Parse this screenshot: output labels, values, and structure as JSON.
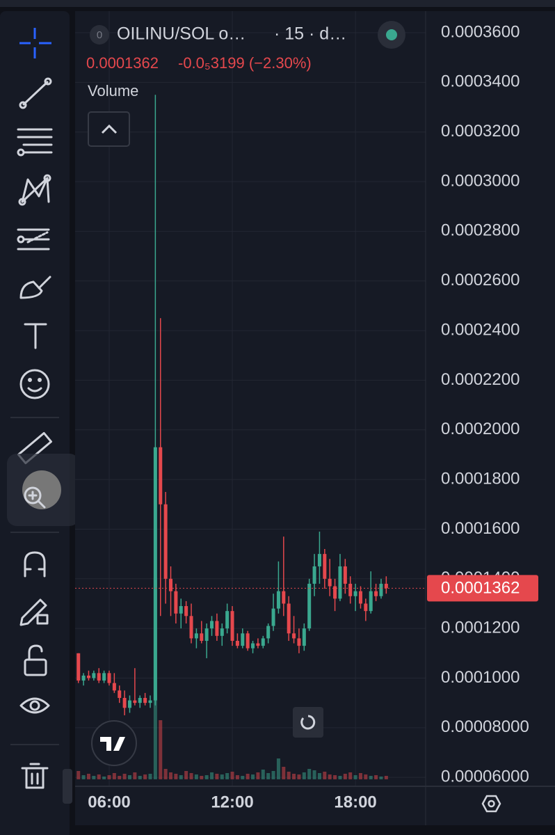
{
  "header": {
    "symbol_badge": "0",
    "symbol": "OILINU/SOL o…",
    "interval": "· 15 · d…",
    "price": "0.0001362",
    "change": "-0.0₅3199 (−2.30%)",
    "volume_label": "Volume"
  },
  "chart_data": {
    "type": "candlestick",
    "up_color": "#3aa88f",
    "down_color": "#e5484d",
    "grid": true,
    "xlim": [
      4.34,
      21.42
    ],
    "xticks": [
      {
        "value": 6,
        "label": "06:00"
      },
      {
        "value": 12,
        "label": "12:00"
      },
      {
        "value": 18,
        "label": "18:00"
      }
    ],
    "ylim": [
      5.64e-05,
      0.0003687
    ],
    "yticks": [
      {
        "value": 6e-05,
        "label": "0.00006000"
      },
      {
        "value": 8e-05,
        "label": "0.00008000"
      },
      {
        "value": 0.0001,
        "label": "0.0001000"
      },
      {
        "value": 0.00012,
        "label": "0.0001200"
      },
      {
        "value": 0.00014,
        "label": "0.0001400"
      },
      {
        "value": 0.00016,
        "label": "0.0001600"
      },
      {
        "value": 0.00018,
        "label": "0.0001800"
      },
      {
        "value": 0.0002,
        "label": "0.0002000"
      },
      {
        "value": 0.00022,
        "label": "0.0002200"
      },
      {
        "value": 0.00024,
        "label": "0.0002400"
      },
      {
        "value": 0.00026,
        "label": "0.0002600"
      },
      {
        "value": 0.00028,
        "label": "0.0002800"
      },
      {
        "value": 0.0003,
        "label": "0.0003000"
      },
      {
        "value": 0.00032,
        "label": "0.0003200"
      },
      {
        "value": 0.00034,
        "label": "0.0003400"
      },
      {
        "value": 0.00036,
        "label": "0.0003600"
      }
    ],
    "price_line": {
      "value": 0.0001362,
      "label": "0.0001362"
    },
    "x": [
      4.5,
      4.75,
      5,
      5.25,
      5.5,
      5.75,
      6,
      6.25,
      6.5,
      6.75,
      7,
      7.25,
      7.5,
      7.75,
      8,
      8.25,
      8.5,
      8.75,
      9,
      9.25,
      9.5,
      9.75,
      10,
      10.25,
      10.5,
      10.75,
      11,
      11.25,
      11.5,
      11.75,
      12,
      12.25,
      12.5,
      12.75,
      13,
      13.25,
      13.5,
      13.75,
      14,
      14.25,
      14.5,
      14.75,
      15,
      15.25,
      15.5,
      15.75,
      16,
      16.25,
      16.5,
      16.75,
      17,
      17.25,
      17.5,
      17.75,
      18,
      18.25,
      18.5,
      18.75,
      19,
      19.25,
      19.5
    ],
    "open": [
      0.00011,
      9.9e-05,
      0.000101,
      0.0001,
      0.000102,
      9.9e-05,
      0.000102,
      9.8e-05,
      9.5e-05,
      9.2e-05,
      8.8e-05,
      9.1e-05,
      9e-05,
      9.2e-05,
      9e-05,
      9.1e-05,
      0.000193,
      0.00017,
      0.00014,
      0.000135,
      0.000126,
      0.000129,
      0.000125,
      0.000116,
      0.000118,
      0.000115,
      0.00012,
      0.000123,
      0.000117,
      0.00012,
      0.000127,
      0.000115,
      0.000113,
      0.000118,
      0.000112,
      0.000114,
      0.000113,
      0.000116,
      0.000121,
      0.000128,
      0.000135,
      0.00013,
      0.000118,
      0.000116,
      0.000113,
      0.00012,
      0.000138,
      0.000145,
      0.00015,
      0.00014,
      0.000137,
      0.000132,
      0.000145,
      0.000138,
      0.000133,
      0.000135,
      0.00013,
      0.000127,
      0.000135,
      0.000133,
      0.000138
    ],
    "high": [
      0.00011,
      0.000102,
      0.000103,
      0.000103,
      0.000104,
      0.000103,
      0.000103,
      0.000102,
      9.7e-05,
      9.5e-05,
      9.3e-05,
      0.000104,
      9.3e-05,
      9.4e-05,
      9.3e-05,
      0.000335,
      0.000245,
      0.000175,
      0.000145,
      0.000138,
      0.000132,
      0.000131,
      0.00013,
      0.00012,
      0.000123,
      0.000122,
      0.000125,
      0.000126,
      0.000122,
      0.00013,
      0.000129,
      0.000118,
      0.00012,
      0.000119,
      0.000115,
      0.000116,
      0.000117,
      0.000122,
      0.000134,
      0.000147,
      0.000157,
      0.000133,
      0.000125,
      0.00012,
      0.000122,
      0.00014,
      0.00015,
      0.000159,
      0.000152,
      0.000148,
      0.00014,
      0.00015,
      0.000148,
      0.000141,
      0.000138,
      0.000137,
      0.000132,
      0.000143,
      0.000138,
      0.00014,
      0.000141
    ],
    "low": [
      9.8e-05,
      9.7e-05,
      9.9e-05,
      9.9e-05,
      9.8e-05,
      9.8e-05,
      9.7e-05,
      9.4e-05,
      9e-05,
      8.5e-05,
      8.6e-05,
      8.9e-05,
      8.8e-05,
      8.9e-05,
      8.8e-05,
      8.9e-05,
      0.000125,
      0.00013,
      0.000125,
      0.000122,
      0.00012,
      0.000122,
      0.000114,
      0.000112,
      0.000114,
      0.000108,
      0.000117,
      0.000115,
      0.000113,
      0.000118,
      0.000113,
      0.000112,
      0.000112,
      0.000111,
      0.00011,
      0.000112,
      0.000112,
      0.000114,
      0.000119,
      0.000126,
      0.000125,
      0.000115,
      0.000114,
      0.00011,
      0.000111,
      0.000119,
      0.000133,
      0.000138,
      0.000136,
      0.000133,
      0.000127,
      0.000131,
      0.000134,
      0.00013,
      0.000127,
      0.000128,
      0.000123,
      0.000126,
      0.000131,
      0.000132,
      0.000134
    ],
    "close": [
      9.9e-05,
      0.000101,
      0.0001,
      0.000102,
      9.9e-05,
      0.000102,
      9.8e-05,
      9.5e-05,
      9.2e-05,
      8.8e-05,
      9.1e-05,
      9e-05,
      9.2e-05,
      9e-05,
      9.1e-05,
      0.000193,
      0.00017,
      0.00014,
      0.000135,
      0.000126,
      0.000129,
      0.000125,
      0.000116,
      0.000118,
      0.000115,
      0.00012,
      0.000123,
      0.000117,
      0.00012,
      0.000127,
      0.000115,
      0.000113,
      0.000118,
      0.000112,
      0.000114,
      0.000113,
      0.000116,
      0.000121,
      0.000128,
      0.000135,
      0.00013,
      0.000118,
      0.000116,
      0.000113,
      0.00012,
      0.000138,
      0.000145,
      0.00015,
      0.00014,
      0.000137,
      0.000132,
      0.000145,
      0.000138,
      0.000133,
      0.000135,
      0.00013,
      0.000127,
      0.000135,
      0.000133,
      0.000138,
      0.0001362
    ],
    "volume": [
      12,
      6,
      8,
      5,
      7,
      4,
      6,
      9,
      5,
      8,
      6,
      10,
      5,
      7,
      8,
      290,
      85,
      15,
      10,
      8,
      6,
      12,
      9,
      7,
      5,
      6,
      10,
      8,
      7,
      9,
      11,
      6,
      5,
      8,
      7,
      10,
      14,
      9,
      12,
      30,
      18,
      11,
      8,
      7,
      10,
      15,
      13,
      9,
      11,
      7,
      6,
      5,
      8,
      10,
      6,
      9,
      7,
      5,
      6,
      4,
      5
    ]
  }
}
